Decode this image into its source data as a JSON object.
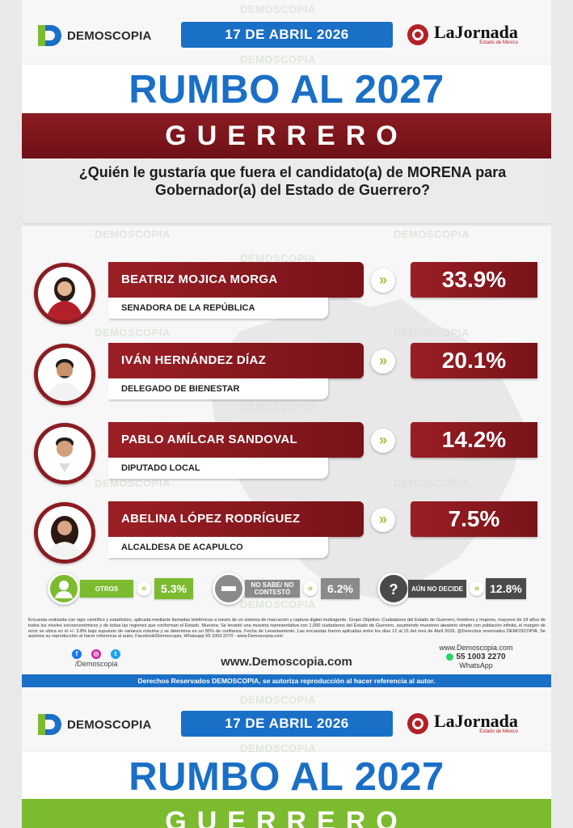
{
  "watermark": "DEMOSCOPIA",
  "header": {
    "logo_text": "DEMOSCOPIA",
    "date": "17 DE ABRIL 2026",
    "partner_name": "LaJornada",
    "partner_sub": "Estado de México"
  },
  "title": "RUMBO AL 2027",
  "state": "GUERRERO",
  "question": "¿Quién le gustaría que fuera el candidato(a) de MORENA para Gobernador(a) del Estado de Guerrero?",
  "candidates": [
    {
      "name": "BEATRIZ MOJICA MORGA",
      "role": "SENADORA DE LA REPÚBLICA",
      "pct": "33.9%"
    },
    {
      "name": "IVÁN HERNÁNDEZ DÍAZ",
      "role": "DELEGADO DE BIENESTAR",
      "pct": "20.1%"
    },
    {
      "name": "PABLO AMÍLCAR SANDOVAL",
      "role": "DIPUTADO LOCAL",
      "pct": "14.2%"
    },
    {
      "name": "ABELINA LÓPEZ RODRÍGUEZ",
      "role": "ALCALDESA DE ACAPULCO",
      "pct": "7.5%"
    }
  ],
  "others": [
    {
      "label": "OTROS",
      "pct": "5.3%",
      "color": "#7cbb30",
      "icon": "user-icon"
    },
    {
      "label": "NO SABE/ NO CONTESTÓ",
      "pct": "6.2%",
      "color": "#8a8a8a",
      "icon": "minus-icon"
    },
    {
      "label": "AÚN NO DECIDE",
      "pct": "12.8%",
      "color": "#4a4a4a",
      "icon": "question-icon"
    }
  ],
  "methodology": "Encuesta realizada con rigor científico y estadístico, aplicada mediante llamadas telefónicas a través de un sistema de marcación y captura digital multiagente. Grupo Objetivo: Ciudadanos del Estado de Guerrero, hombres y mujeres, mayores de 18 años de todos los niveles socioeconómicos y de todas las regiones que conforman el Estado. Muestra: Se levantó una muestra representativa con 1,000 ciudadanos del Estado de Guerrero, asumiendo muestreo aleatorio simple con población infinita, el margen de error se ubica en el +/- 3.8% bajo supuesto de varianza máxima y se determina en un 95% de confianza. Fecha de Levantamiento. Las encuestas fueron aplicadas entre los días 12 al 15 del mes de Abril 2026. @Derechos reservados DEMOSCOPIA. Se autoriza su reproducción al hacer referencia al autor, Facebook/Demoscopia, Whatsapp 55 1003 2270 - www.Demoscopia.com",
  "footer": {
    "social_handle": "/Demoscopia",
    "website": "www.Demoscopia.com",
    "contact_web": "www.Demoscopia.com",
    "phone": "55 1003 2270",
    "whatsapp": "WhatsApp",
    "rights": "Derechos Reservados DEMOSCOPIA, se autoriza reproducción al hacer referencia al autor."
  },
  "colors": {
    "blue": "#1a6fc6",
    "maroon": "#8b1c22",
    "green": "#7cbb30"
  }
}
